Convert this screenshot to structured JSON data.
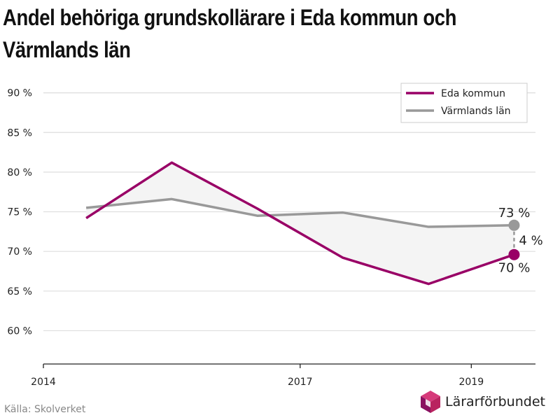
{
  "title_line1": "Andel behöriga grundskollärare i Eda kommun och",
  "title_line2": "Värmlands län",
  "source": "Källa: Skolverket",
  "logo_text": "Lärarförbundet",
  "colors": {
    "eda": "#990066",
    "varmland": "#999999",
    "fill": "#f4f4f4",
    "grid": "#dddddd"
  },
  "chart_data": {
    "type": "line",
    "title": "Andel behöriga grundskollärare i Eda kommun och Värmlands län",
    "x": [
      2014.5,
      2015.5,
      2016.5,
      2017.5,
      2018.5,
      2019.5
    ],
    "x_ticks": [
      2014,
      2017,
      2019
    ],
    "x_tick_labels": [
      "2014",
      "2017",
      "2019"
    ],
    "xlim": [
      2014,
      2019.75
    ],
    "ylim": [
      55.8,
      92
    ],
    "y_ticks": [
      60,
      65,
      70,
      75,
      80,
      85,
      90
    ],
    "y_tick_labels": [
      "60 %",
      "65 %",
      "70 %",
      "75 %",
      "80 %",
      "85 %",
      "90 %"
    ],
    "grid": true,
    "legend_position": "top-right",
    "series": [
      {
        "name": "Eda kommun",
        "color": "#990066",
        "values": [
          74.2,
          81.2,
          75.4,
          69.2,
          65.9,
          69.6
        ]
      },
      {
        "name": "Värmlands län",
        "color": "#999999",
        "values": [
          75.5,
          76.6,
          74.5,
          74.9,
          73.1,
          73.3
        ]
      }
    ],
    "annotations": {
      "varmland_last": "73 %",
      "eda_last": "70 %",
      "difference": "4 %"
    }
  }
}
